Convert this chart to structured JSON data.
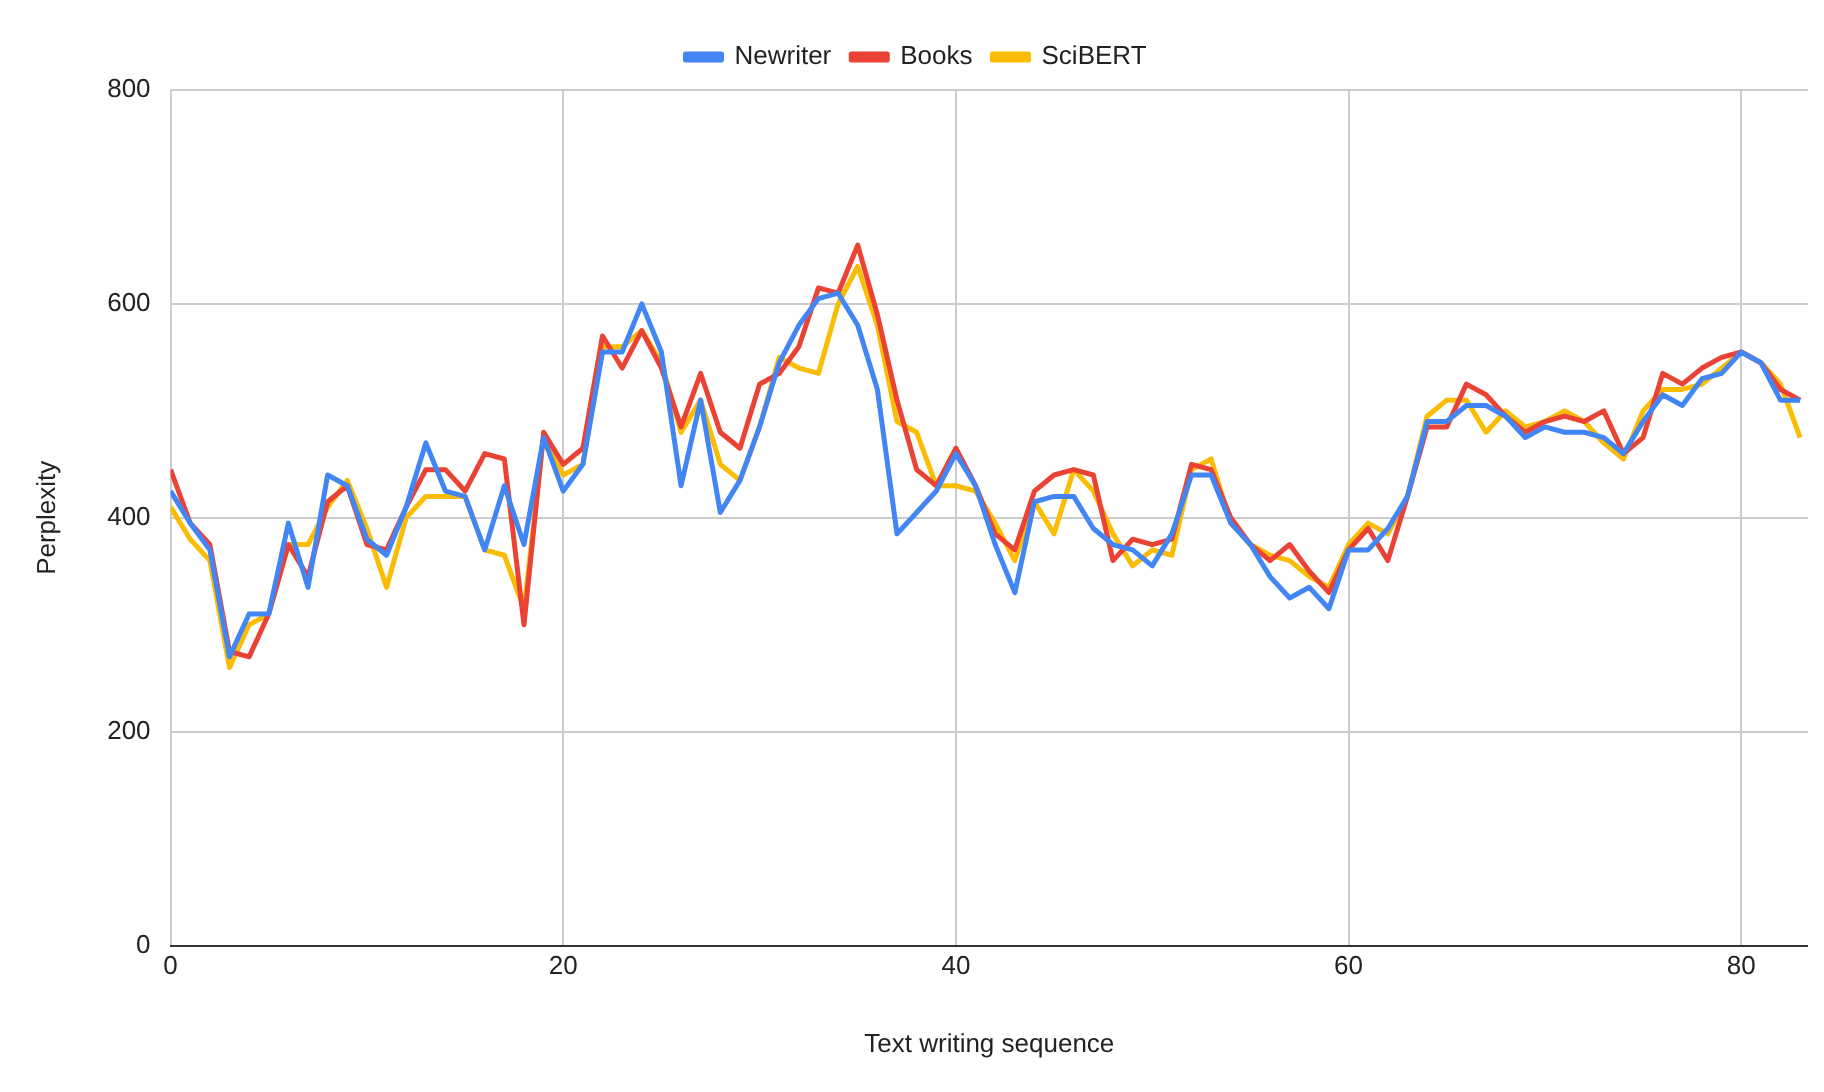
{
  "chart_data": {
    "type": "line",
    "xlabel": "Text writing sequence",
    "ylabel": "Perplexity",
    "x": [
      0,
      1,
      2,
      3,
      4,
      5,
      6,
      7,
      8,
      9,
      10,
      11,
      12,
      13,
      14,
      15,
      16,
      17,
      18,
      19,
      20,
      21,
      22,
      23,
      24,
      25,
      26,
      27,
      28,
      29,
      30,
      31,
      32,
      33,
      34,
      35,
      36,
      37,
      38,
      39,
      40,
      41,
      42,
      43,
      44,
      45,
      46,
      47,
      48,
      49,
      50,
      51,
      52,
      53,
      54,
      55,
      56,
      57,
      58,
      59,
      60,
      61,
      62,
      63,
      64,
      65,
      66,
      67,
      68,
      69,
      70,
      71,
      72,
      73,
      74,
      75,
      76,
      77,
      78,
      79,
      80,
      81,
      82,
      83
    ],
    "series": [
      {
        "name": "Newriter",
        "color": "#4285f4",
        "values": [
          425,
          395,
          370,
          270,
          310,
          310,
          395,
          335,
          440,
          430,
          380,
          365,
          410,
          470,
          425,
          420,
          370,
          430,
          375,
          475,
          425,
          450,
          555,
          555,
          600,
          555,
          430,
          510,
          405,
          435,
          485,
          545,
          580,
          605,
          610,
          580,
          520,
          385,
          405,
          425,
          460,
          430,
          375,
          330,
          415,
          420,
          420,
          390,
          375,
          370,
          355,
          385,
          440,
          440,
          395,
          375,
          345,
          325,
          335,
          315,
          370,
          370,
          390,
          420,
          490,
          490,
          505,
          505,
          495,
          475,
          485,
          480,
          480,
          475,
          460,
          490,
          515,
          505,
          530,
          535,
          555,
          545,
          510,
          510
        ]
      },
      {
        "name": "Books",
        "color": "#ea4335",
        "values": [
          445,
          395,
          375,
          275,
          270,
          310,
          375,
          345,
          415,
          430,
          375,
          370,
          410,
          445,
          445,
          425,
          460,
          455,
          300,
          480,
          450,
          465,
          570,
          540,
          575,
          540,
          485,
          535,
          480,
          465,
          525,
          535,
          560,
          615,
          610,
          655,
          590,
          510,
          445,
          430,
          465,
          430,
          385,
          370,
          425,
          440,
          445,
          440,
          360,
          380,
          375,
          380,
          450,
          445,
          400,
          375,
          360,
          375,
          350,
          330,
          370,
          390,
          360,
          420,
          485,
          485,
          525,
          515,
          495,
          480,
          490,
          495,
          490,
          500,
          460,
          475,
          535,
          525,
          540,
          550,
          555,
          545,
          520,
          510
        ]
      },
      {
        "name": "SciBERT",
        "color": "#fbbc04",
        "values": [
          410,
          380,
          360,
          260,
          300,
          310,
          375,
          375,
          410,
          435,
          390,
          335,
          400,
          420,
          420,
          420,
          370,
          365,
          315,
          475,
          440,
          450,
          560,
          560,
          575,
          545,
          480,
          510,
          450,
          435,
          485,
          550,
          540,
          535,
          600,
          635,
          580,
          490,
          480,
          430,
          430,
          425,
          395,
          360,
          415,
          385,
          445,
          425,
          385,
          355,
          370,
          365,
          445,
          455,
          395,
          375,
          365,
          360,
          345,
          335,
          375,
          395,
          385,
          420,
          495,
          510,
          510,
          480,
          500,
          485,
          490,
          500,
          490,
          470,
          455,
          500,
          520,
          520,
          525,
          540,
          555,
          545,
          525,
          475
        ]
      }
    ],
    "xlim": [
      0,
      83.4
    ],
    "xticks": [
      0,
      20,
      40,
      60,
      80
    ],
    "ylim": [
      0,
      800
    ],
    "yticks": [
      0,
      200,
      400,
      600,
      800
    ],
    "grid": true,
    "legend": "top",
    "marker": "none",
    "line_style": "solid"
  }
}
